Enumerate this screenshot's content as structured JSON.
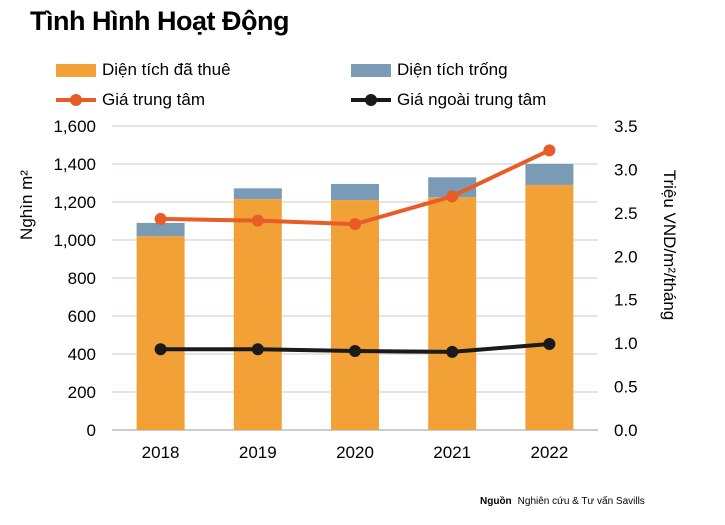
{
  "chart_data": {
    "type": "bar+line",
    "title": "Tình Hình Hoạt Động",
    "categories": [
      "2018",
      "2019",
      "2020",
      "2021",
      "2022"
    ],
    "bar_series": [
      {
        "name": "Diện tích đã thuê",
        "values": [
          1020,
          1215,
          1210,
          1225,
          1290
        ],
        "color": "#F2A137"
      },
      {
        "name": "Diện tích trống",
        "values": [
          70,
          57,
          85,
          105,
          110
        ],
        "color": "#7A9BB5"
      }
    ],
    "line_series": [
      {
        "name": "Giá trung tâm",
        "values": [
          2.43,
          2.41,
          2.37,
          2.69,
          3.22
        ],
        "color": "#E85C27"
      },
      {
        "name": "Giá ngoài trung tâm",
        "values": [
          0.93,
          0.93,
          0.91,
          0.9,
          0.99
        ],
        "color": "#1A1A1A"
      }
    ],
    "ylabel": "Nghìn m²",
    "y2label": "Triệu VND/m²/tháng",
    "ylim": [
      0,
      1600
    ],
    "y2lim": [
      0,
      3.5
    ],
    "yticks": [
      "0",
      "200",
      "400",
      "600",
      "800",
      "1,000",
      "1,200",
      "1,400",
      "1,600"
    ],
    "y2ticks": [
      "0.0",
      "0.5",
      "1.0",
      "1.5",
      "2.0",
      "2.5",
      "3.0",
      "3.5"
    ],
    "grid": true,
    "legend_position": "top"
  },
  "source": {
    "label": "Nguồn",
    "text": "Nghiên cứu & Tư vấn Savills"
  }
}
